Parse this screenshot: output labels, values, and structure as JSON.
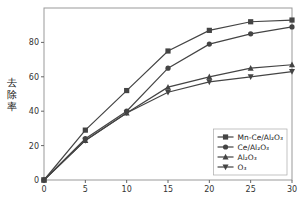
{
  "chart_data": {
    "type": "line",
    "y_label": "去除率",
    "x": [
      0,
      5,
      10,
      15,
      20,
      25,
      30
    ],
    "series": [
      {
        "name": "Mn-Ce/Al₂O₃",
        "color": "#444444",
        "marker": "square",
        "values": [
          0,
          29,
          52,
          75,
          87,
          92,
          93
        ]
      },
      {
        "name": "Ce/Al₂O₃",
        "color": "#444444",
        "marker": "circle",
        "values": [
          0,
          24,
          40,
          65,
          79,
          85,
          89
        ]
      },
      {
        "name": "Al₂O₃",
        "color": "#444444",
        "marker": "triangle-up",
        "values": [
          0,
          23,
          39,
          54,
          60,
          65,
          67
        ]
      },
      {
        "name": "O₃",
        "color": "#444444",
        "marker": "triangle-down",
        "values": [
          0,
          23,
          39,
          51,
          57,
          60,
          63
        ]
      }
    ],
    "xlim": [
      0,
      30
    ],
    "ylim": [
      0,
      100
    ],
    "xticks": [
      0,
      5,
      10,
      15,
      20,
      25,
      30
    ],
    "yticks": [
      0,
      20,
      40,
      60,
      80
    ],
    "grid": false,
    "legend": "lower right"
  }
}
